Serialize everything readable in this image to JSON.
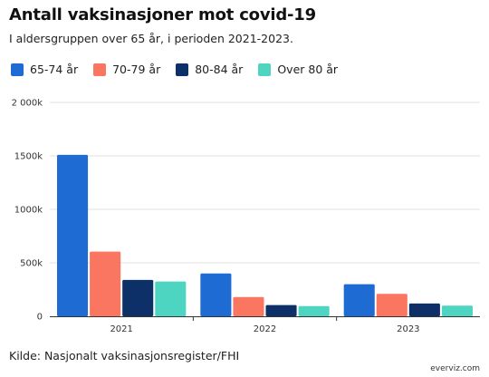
{
  "header": {
    "title": "Antall vaksinasjoner mot covid-19",
    "subtitle": "I aldersgruppen over 65 år, i perioden 2021-2023."
  },
  "footer": {
    "source": "Kilde: Nasjonalt vaksinasjonsregister/FHI",
    "credit": "everviz.com"
  },
  "chart_data": {
    "type": "bar",
    "title": "Antall vaksinasjoner mot covid-19",
    "subtitle": "I aldersgruppen over 65 år, i perioden 2021-2023.",
    "xlabel": "",
    "ylabel": "",
    "categories": [
      "2021",
      "2022",
      "2023"
    ],
    "series": [
      {
        "name": "65-74 år",
        "color": "#1f6bd4",
        "values": [
          1510000,
          400000,
          300000
        ]
      },
      {
        "name": "70-79 år",
        "color": "#fa7660",
        "values": [
          605000,
          180000,
          210000
        ]
      },
      {
        "name": "80-84 år",
        "color": "#0d3068",
        "values": [
          340000,
          105000,
          120000
        ]
      },
      {
        "name": "Over 80 år",
        "color": "#4dd5c2",
        "values": [
          325000,
          95000,
          100000
        ]
      }
    ],
    "ylim": [
      0,
      2000000
    ],
    "yticks": [
      0,
      500000,
      1000000,
      1500000,
      2000000
    ],
    "ytick_labels": [
      "0",
      "500k",
      "1000k",
      "1500k",
      "2 000k"
    ],
    "grid": true,
    "legend_position": "top-left"
  }
}
